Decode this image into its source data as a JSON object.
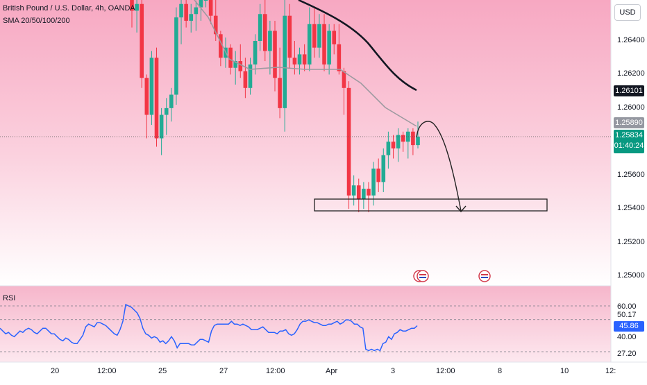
{
  "header": {
    "symbol_line": "British Pound / U.S. Dollar, 4h, OANDA",
    "indicator_line": "SMA 20/50/100/200"
  },
  "currency_button": "USD",
  "price_axis": {
    "ticks": [
      "1.26400",
      "1.26200",
      "1.26000",
      "1.25600",
      "1.25400",
      "1.25200",
      "1.25000"
    ],
    "tick_values": [
      1.264,
      1.262,
      1.26,
      1.256,
      1.254,
      1.252,
      1.25
    ],
    "sma_label": "1.26101",
    "sma_label_color": "#131722",
    "sma_gray_label": "1.25890",
    "sma_gray_color": "#8a8d94",
    "last_price": "1.25834",
    "countdown": "01:40:24",
    "last_price_color": "#089981"
  },
  "time_axis": {
    "labels": [
      "20",
      "12:00",
      "25",
      "27",
      "12:00",
      "Apr",
      "3",
      "12:00",
      "8",
      "10",
      "12:"
    ]
  },
  "rsi": {
    "title": "RSI",
    "ticks": [
      "60.00",
      "50.17",
      "40.00",
      "27.20"
    ],
    "current": "45.86",
    "current_color": "#2962ff",
    "values": [
      44,
      42,
      40,
      41,
      39,
      38,
      40,
      42,
      41,
      43,
      44,
      43,
      41,
      40,
      42,
      44,
      44,
      42,
      40,
      40,
      38,
      36,
      35,
      37,
      36,
      34,
      33,
      33,
      36,
      39,
      45,
      47,
      46,
      45,
      48,
      48,
      47,
      46,
      44,
      42,
      40,
      39,
      43,
      49,
      61,
      60,
      59,
      57,
      55,
      51,
      44,
      40,
      39,
      37,
      38,
      37,
      34,
      35,
      33,
      35,
      38,
      35,
      30,
      33,
      33,
      33,
      33,
      32,
      32,
      34,
      36,
      36,
      35,
      34,
      42,
      46,
      47,
      47,
      47,
      47,
      47,
      49,
      47,
      47,
      46,
      47,
      46,
      45,
      43,
      43,
      43,
      44,
      45,
      43,
      41,
      41,
      41,
      40,
      42,
      42,
      43,
      40,
      39,
      40,
      43,
      47,
      49,
      49,
      50,
      49,
      48,
      48,
      47,
      46,
      46,
      47,
      47,
      48,
      49,
      47,
      48,
      50,
      50,
      49,
      47,
      47,
      45,
      44,
      29,
      28,
      29,
      28,
      29,
      28,
      33,
      34,
      38,
      36,
      40,
      41,
      43,
      42,
      42,
      43,
      44,
      44,
      45.86
    ]
  },
  "chart_data": {
    "type": "candlestick",
    "title": "British Pound / U.S. Dollar, 4h, OANDA",
    "ylim": [
      1.2492,
      1.2678
    ],
    "candles": [
      [
        1.269,
        1.269,
        1.2648,
        1.2658
      ],
      [
        1.2658,
        1.2672,
        1.2645,
        1.2662
      ],
      [
        1.2662,
        1.2668,
        1.2612,
        1.2618
      ],
      [
        1.2618,
        1.262,
        1.2582,
        1.2596
      ],
      [
        1.2596,
        1.2634,
        1.259,
        1.263
      ],
      [
        1.263,
        1.2636,
        1.2577,
        1.2582
      ],
      [
        1.2582,
        1.26,
        1.2572,
        1.2596
      ],
      [
        1.2596,
        1.2606,
        1.2584,
        1.26
      ],
      [
        1.26,
        1.2612,
        1.2592,
        1.2608
      ],
      [
        1.2608,
        1.266,
        1.2602,
        1.2654
      ],
      [
        1.2654,
        1.2672,
        1.2638,
        1.2662
      ],
      [
        1.2662,
        1.2676,
        1.2648,
        1.2652
      ],
      [
        1.2652,
        1.2662,
        1.2645,
        1.2656
      ],
      [
        1.2656,
        1.2664,
        1.2646,
        1.266
      ],
      [
        1.266,
        1.2678,
        1.2652,
        1.2672
      ],
      [
        1.2672,
        1.2684,
        1.266,
        1.2678
      ],
      [
        1.2678,
        1.2682,
        1.265,
        1.2655
      ],
      [
        1.2655,
        1.2668,
        1.264,
        1.2644
      ],
      [
        1.2644,
        1.2646,
        1.2625,
        1.263
      ],
      [
        1.263,
        1.2642,
        1.2624,
        1.2636
      ],
      [
        1.2636,
        1.2638,
        1.262,
        1.2624
      ],
      [
        1.2624,
        1.2634,
        1.2614,
        1.2628
      ],
      [
        1.2628,
        1.2638,
        1.2618,
        1.2622
      ],
      [
        1.2622,
        1.263,
        1.2606,
        1.2612
      ],
      [
        1.2612,
        1.263,
        1.2608,
        1.2626
      ],
      [
        1.2626,
        1.2644,
        1.262,
        1.264
      ],
      [
        1.264,
        1.2662,
        1.2634,
        1.2656
      ],
      [
        1.2656,
        1.2668,
        1.2628,
        1.2634
      ],
      [
        1.2634,
        1.2652,
        1.262,
        1.2646
      ],
      [
        1.2646,
        1.2652,
        1.261,
        1.2618
      ],
      [
        1.2618,
        1.2636,
        1.2594,
        1.26
      ],
      [
        1.26,
        1.2665,
        1.2586,
        1.2655
      ],
      [
        1.2655,
        1.2662,
        1.2624,
        1.263
      ],
      [
        1.263,
        1.264,
        1.262,
        1.2626
      ],
      [
        1.2626,
        1.2636,
        1.262,
        1.2632
      ],
      [
        1.2632,
        1.2638,
        1.2622,
        1.2626
      ],
      [
        1.2626,
        1.266,
        1.2622,
        1.265
      ],
      [
        1.265,
        1.266,
        1.263,
        1.2636
      ],
      [
        1.2636,
        1.2656,
        1.263,
        1.265
      ],
      [
        1.265,
        1.2656,
        1.2622,
        1.2626
      ],
      [
        1.2626,
        1.265,
        1.262,
        1.2646
      ],
      [
        1.2646,
        1.265,
        1.2632,
        1.2638
      ],
      [
        1.2638,
        1.265,
        1.262,
        1.2622
      ],
      [
        1.2622,
        1.2624,
        1.2596,
        1.2612
      ],
      [
        1.2612,
        1.2616,
        1.254,
        1.2548
      ],
      [
        1.2548,
        1.256,
        1.2542,
        1.2554
      ],
      [
        1.2554,
        1.2558,
        1.2538,
        1.2546
      ],
      [
        1.2546,
        1.2556,
        1.254,
        1.2552
      ],
      [
        1.2552,
        1.2556,
        1.2538,
        1.2548
      ],
      [
        1.2548,
        1.2568,
        1.2542,
        1.2564
      ],
      [
        1.2564,
        1.257,
        1.255,
        1.2556
      ],
      [
        1.2556,
        1.2576,
        1.255,
        1.2572
      ],
      [
        1.2572,
        1.2586,
        1.2564,
        1.258
      ],
      [
        1.258,
        1.2584,
        1.257,
        1.2576
      ],
      [
        1.2576,
        1.2588,
        1.2568,
        1.2584
      ],
      [
        1.2584,
        1.2586,
        1.2574,
        1.258
      ],
      [
        1.258,
        1.2588,
        1.257,
        1.2586
      ],
      [
        1.2586,
        1.2588,
        1.2572,
        1.2578
      ],
      [
        1.2578,
        1.2592,
        1.2576,
        1.2583
      ]
    ],
    "sma_gray": [
      [
        1.2678,
        1.2678
      ],
      [
        1.2666,
        1.2664
      ],
      [
        1.265,
        1.264
      ],
      [
        1.264,
        1.263
      ],
      [
        1.2634,
        1.2632
      ],
      [
        1.2633,
        1.263
      ],
      [
        1.262,
        1.261
      ],
      [
        1.2605,
        1.2596
      ],
      [
        1.2589,
        1.2589
      ]
    ],
    "sma_black": [
      [
        0,
        1.2678
      ],
      [
        1,
        1.2672
      ],
      [
        2,
        1.266
      ],
      [
        3,
        1.2642
      ],
      [
        4,
        1.2626
      ],
      [
        5,
        1.2614
      ],
      [
        6,
        1.261
      ]
    ]
  }
}
